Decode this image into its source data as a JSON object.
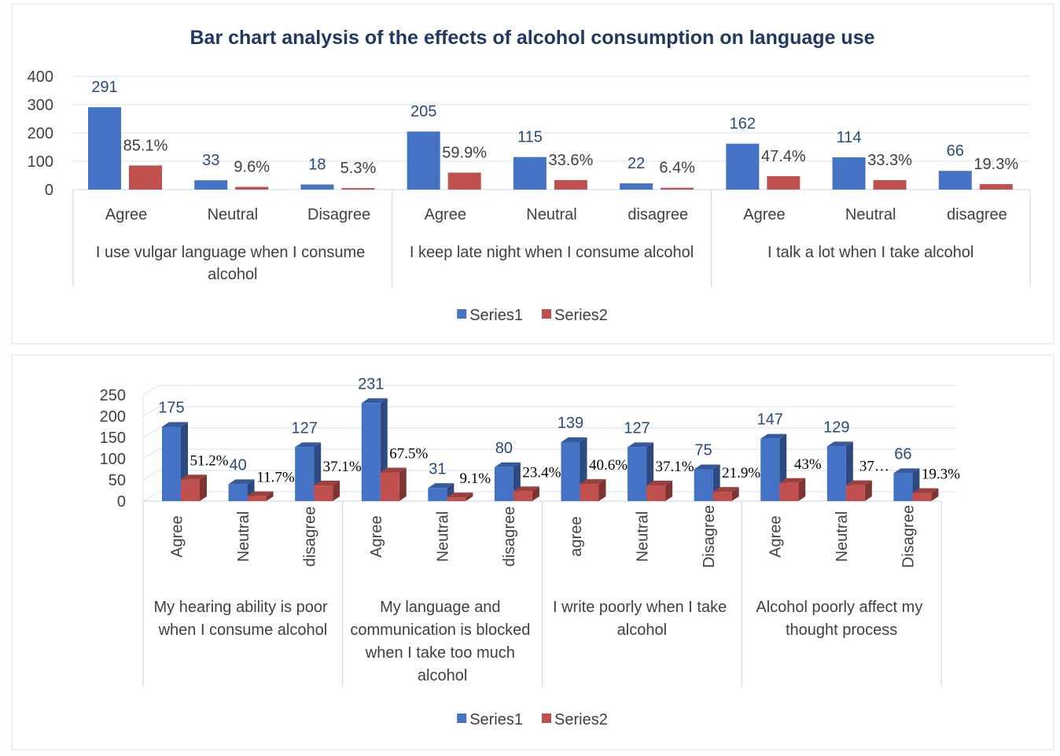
{
  "chart_data": [
    {
      "type": "bar",
      "title": "Bar chart analysis of the effects of alcohol consumption on language use",
      "groups": [
        {
          "name": "I use vulgar language when I consume alcohol",
          "categories": [
            "Agree",
            "Neutral",
            "Disagree"
          ]
        },
        {
          "name": "I keep late night when I consume alcohol",
          "categories": [
            "Agree",
            "Neutral",
            "disagree"
          ]
        },
        {
          "name": "I talk a lot when I take alcohol",
          "categories": [
            "Agree",
            "Neutral",
            "disagree"
          ]
        }
      ],
      "series": [
        {
          "name": "Series1",
          "color": "#4472c4",
          "values": [
            291,
            33,
            18,
            205,
            115,
            22,
            162,
            114,
            66
          ]
        },
        {
          "name": "Series2",
          "color": "#c0504d",
          "values": [
            85.1,
            9.6,
            5.3,
            59.9,
            33.6,
            6.4,
            47.4,
            33.3,
            19.3
          ],
          "value_labels": [
            "85.1%",
            "9.6%",
            "5.3%",
            "59.9%",
            "33.6%",
            "6.4%",
            "47.4%",
            "33.3%",
            "19.3%"
          ]
        }
      ],
      "ylim": [
        0,
        400
      ],
      "yticks": [
        0,
        100,
        200,
        300,
        400
      ],
      "grid": true,
      "legend": "bottom"
    },
    {
      "type": "bar",
      "three_d": true,
      "groups": [
        {
          "name": "My hearing ability is poor when I consume alcohol",
          "categories": [
            "Agree",
            "Neutral",
            "disagree"
          ]
        },
        {
          "name": "My language and communication is blocked  when I take too much alcohol",
          "categories": [
            "Agree",
            "Neutral",
            "disagree"
          ]
        },
        {
          "name": "I write poorly when I take alcohol",
          "categories": [
            "agree",
            "Neutral",
            "Disagree"
          ]
        },
        {
          "name": "Alcohol poorly affect my thought process",
          "categories": [
            "Agree",
            "Neutral",
            "Disagree"
          ]
        }
      ],
      "series": [
        {
          "name": "Series1",
          "color": "#4472c4",
          "values": [
            175,
            40,
            127,
            231,
            31,
            80,
            139,
            127,
            75,
            147,
            129,
            66
          ]
        },
        {
          "name": "Series2",
          "color": "#c0504d",
          "values": [
            51.2,
            11.7,
            37.1,
            67.5,
            9.1,
            23.4,
            40.6,
            37.1,
            21.9,
            43,
            37.7,
            19.3
          ],
          "value_labels": [
            "51.2%",
            "11.7%",
            "37.1%",
            "67.5%",
            "9.1%",
            "23.4%",
            "40.6%",
            "37.1%",
            "21.9%",
            "43%",
            "37…",
            "19.3%"
          ]
        }
      ],
      "ylim": [
        0,
        250
      ],
      "yticks": [
        0,
        50,
        100,
        150,
        200,
        250
      ],
      "grid": true,
      "legend": "bottom"
    }
  ]
}
